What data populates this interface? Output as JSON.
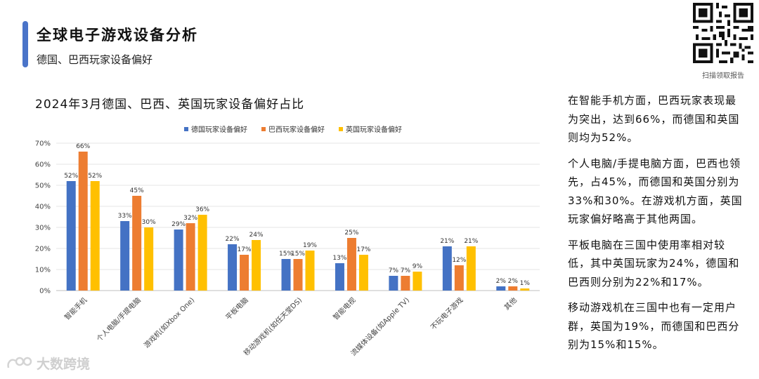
{
  "header": {
    "title": "全球电子游戏设备分析",
    "subtitle": "德国、巴西玩家设备偏好"
  },
  "qr": {
    "label": "扫描领取报告"
  },
  "colors": {
    "accent": "#4a74c9",
    "germany": "#4472c4",
    "brazil": "#ed7d31",
    "uk": "#ffc000"
  },
  "chart_data": {
    "type": "bar",
    "title": "2024年3月德国、巴西、英国玩家设备偏好占比",
    "categories": [
      "智能手机",
      "个人电脑/手提电脑",
      "游戏机(如Xbox One)",
      "平板电脑",
      "移动游戏机(如任天堂DS)",
      "智能电视",
      "流媒体设备(如Apple TV)",
      "不玩电子游戏",
      "其他"
    ],
    "series": [
      {
        "name": "德国玩家设备偏好",
        "color": "#4472c4",
        "values": [
          52,
          33,
          29,
          22,
          15,
          13,
          7,
          21,
          2
        ]
      },
      {
        "name": "巴西玩家设备偏好",
        "color": "#ed7d31",
        "values": [
          66,
          45,
          32,
          17,
          15,
          25,
          7,
          12,
          2
        ]
      },
      {
        "name": "英国玩家设备偏好",
        "color": "#ffc000",
        "values": [
          52,
          30,
          36,
          24,
          19,
          17,
          9,
          21,
          1
        ]
      }
    ],
    "ylim": [
      0,
      70
    ],
    "yticks": [
      "0%",
      "10%",
      "20%",
      "30%",
      "40%",
      "50%",
      "60%",
      "70%"
    ],
    "grid": true,
    "legend": "top",
    "value_suffix": "%"
  },
  "side": {
    "paragraphs": [
      "在智能手机方面，巴西玩家表现最为突出，达到66%，而德国和英国则均为52%。",
      "个人电脑/手提电脑方面，巴西也领先，占45%，而德国和英国分别为33%和30%。在游戏机方面，英国玩家偏好略高于其他两国。",
      "平板电脑在三国中使用率相对较低，其中英国玩家为24%，德国和巴西则分别为22%和17%。",
      "移动游戏机在三国中也有一定用户群，英国为19%，而德国和巴西分别为15%和15%。"
    ]
  },
  "watermark": {
    "text": "大数跨境"
  }
}
